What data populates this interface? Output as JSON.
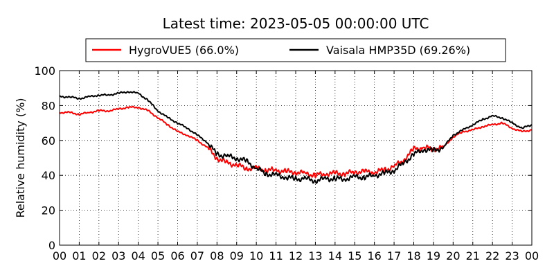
{
  "chart_data": {
    "type": "line",
    "title": "Latest time: 2023-05-05 00:00:00 UTC",
    "xlabel": "",
    "ylabel": "Relative humidity (%)",
    "xlim": [
      0,
      24
    ],
    "ylim": [
      0,
      100
    ],
    "grid": true,
    "legend_position": "top",
    "x_tick_labels": [
      "00",
      "01",
      "02",
      "03",
      "04",
      "05",
      "06",
      "07",
      "08",
      "09",
      "10",
      "11",
      "12",
      "13",
      "14",
      "15",
      "16",
      "17",
      "18",
      "19",
      "20",
      "21",
      "22",
      "23",
      "00"
    ],
    "y_tick_labels": [
      "0",
      "20",
      "40",
      "60",
      "80",
      "100"
    ],
    "x": [
      0,
      0.5,
      1,
      1.5,
      2,
      2.5,
      3,
      3.5,
      4,
      4.5,
      5,
      5.5,
      6,
      6.5,
      7,
      7.5,
      8,
      8.5,
      9,
      9.5,
      10,
      10.5,
      11,
      11.5,
      12,
      12.5,
      13,
      13.5,
      14,
      14.5,
      15,
      15.5,
      16,
      16.5,
      17,
      17.5,
      18,
      18.5,
      19,
      19.5,
      20,
      20.5,
      21,
      21.5,
      22,
      22.5,
      23,
      23.5,
      24
    ],
    "series": [
      {
        "name": "HygroVUE5 (66.0%)",
        "color": "#ff0000",
        "values": [
          76,
          76,
          75,
          76,
          77,
          77,
          78,
          79,
          79,
          77,
          73,
          69,
          65,
          63,
          60,
          56,
          50,
          47,
          46,
          44,
          44,
          43,
          43,
          42,
          42,
          41,
          40,
          41,
          41,
          41,
          42,
          42,
          42,
          43,
          45,
          49,
          55,
          56,
          55,
          56,
          62,
          65,
          66,
          68,
          69,
          70,
          67,
          65,
          66
        ]
      },
      {
        "name": "Vaisala HMP35D (69.26%)",
        "color": "#000000",
        "values": [
          85,
          85,
          84,
          85,
          86,
          86,
          87,
          88,
          87,
          83,
          77,
          73,
          70,
          67,
          63,
          59,
          52,
          51,
          50,
          48,
          44,
          41,
          40,
          39,
          38,
          38,
          37,
          38,
          38,
          38,
          39,
          39,
          40,
          41,
          43,
          47,
          52,
          55,
          54,
          56,
          63,
          66,
          69,
          72,
          74,
          73,
          70,
          67,
          69
        ]
      }
    ]
  }
}
